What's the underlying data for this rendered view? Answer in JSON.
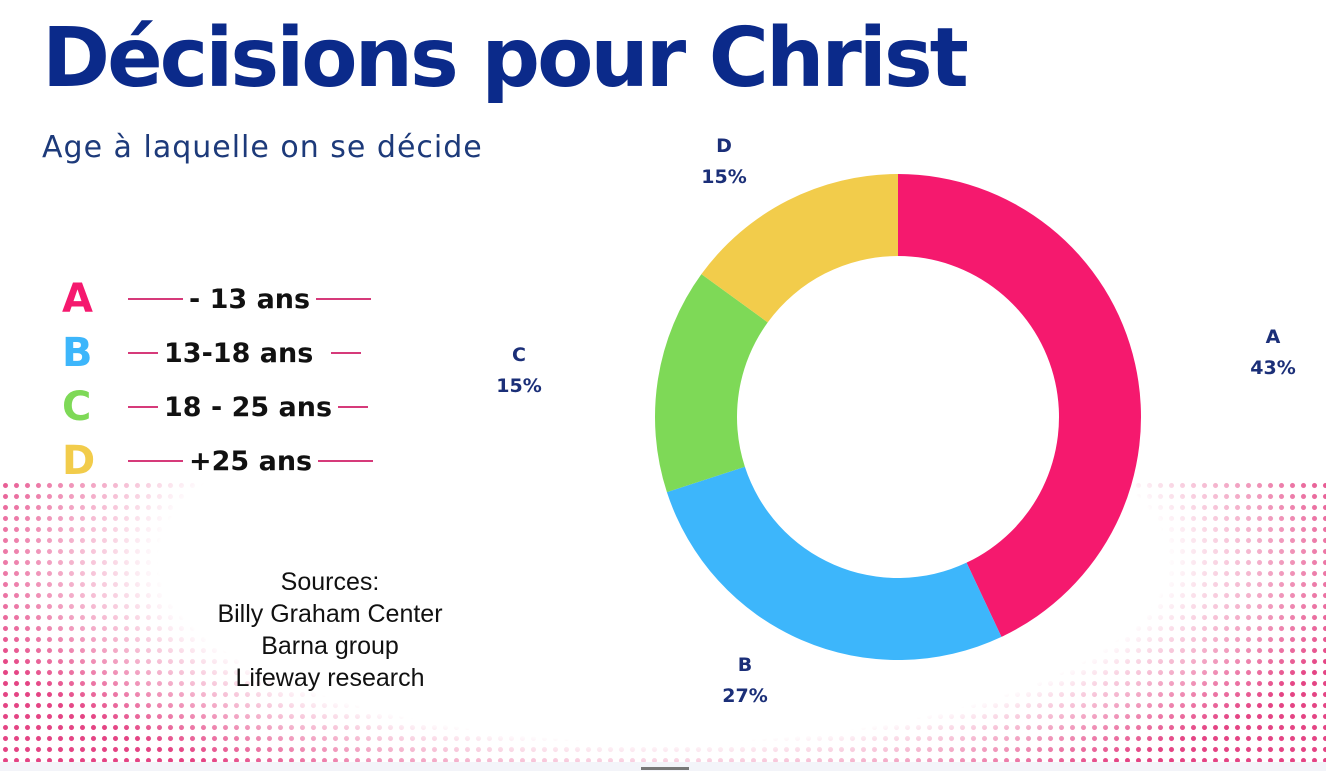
{
  "title": "Décisions pour Christ",
  "subtitle": "Age à laquelle on se décide",
  "legend": [
    {
      "letter": "A",
      "text": "- 13 ans",
      "color": "#f5196e"
    },
    {
      "letter": "B",
      "text": "13-18 ans",
      "color": "#3db6fb"
    },
    {
      "letter": "C",
      "text": "18 - 25 ans",
      "color": "#7ed957"
    },
    {
      "letter": "D",
      "text": "+25 ans",
      "color": "#f2cc4b"
    }
  ],
  "sources": [
    "Sources:",
    "Billy Graham Center",
    "Barna group",
    "Lifeway research"
  ],
  "chart_data": {
    "type": "pie",
    "donut": true,
    "categories": [
      "A",
      "B",
      "C",
      "D"
    ],
    "values": [
      43,
      27,
      15,
      15
    ],
    "labels": [
      "43%",
      "27%",
      "15%",
      "15%"
    ],
    "colors": [
      "#f5196e",
      "#3db6fb",
      "#7ed957",
      "#f2cc4b"
    ],
    "start": "top",
    "direction": "clockwise"
  }
}
